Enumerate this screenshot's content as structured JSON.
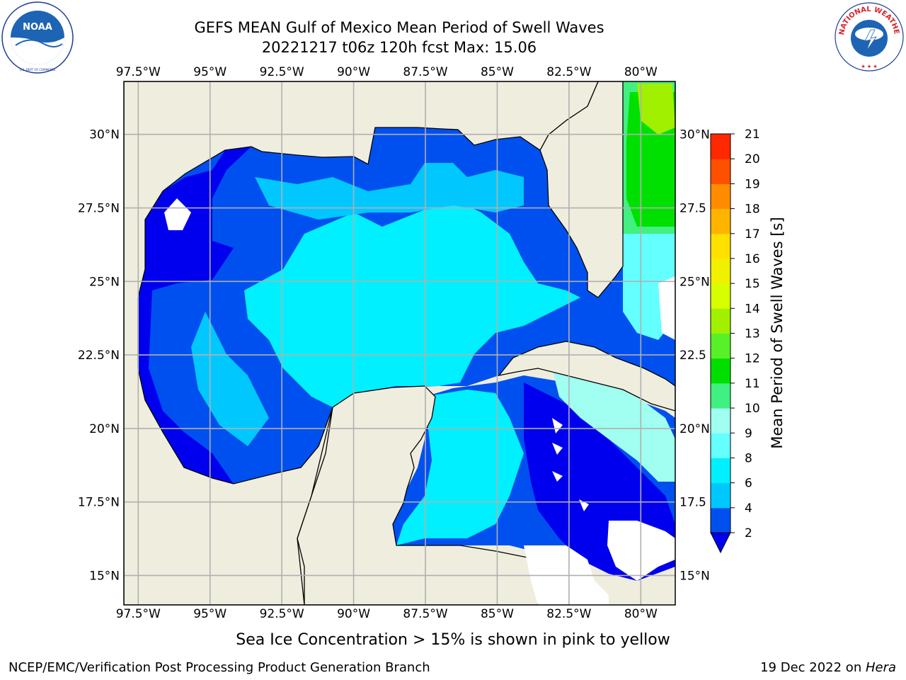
{
  "header": {
    "title_line1": "GEFS MEAN Gulf of Mexico Mean Period of Swell Waves",
    "title_line2": "20221217 t06z 120h fcst   Max: 15.06"
  },
  "logos": {
    "left": "noaa-logo",
    "right": "national-weather-service-logo",
    "left_ring_text": "NATIONAL OCEANIC AND ATMOSPHERIC ADMINISTRATION · U.S. DEPARTMENT OF COMMERCE",
    "right_ring_text": "NATIONAL WEATHER SERVICE"
  },
  "map": {
    "lon_labels": [
      "97.5°W",
      "95°W",
      "92.5°W",
      "90°W",
      "87.5°W",
      "85°W",
      "82.5°W",
      "80°W"
    ],
    "lat_labels": [
      "30°N",
      "27.5°N",
      "25°N",
      "22.5°N",
      "20°N",
      "17.5°N",
      "15°N"
    ],
    "lat_labels_right": [
      "30°N",
      "27.5",
      "25°N",
      "22.5",
      "20°N",
      "17.5",
      "15°N"
    ],
    "lon_range": [
      -98.0,
      -78.8
    ],
    "lat_range": [
      14.0,
      31.8
    ],
    "grid": true,
    "land_color": "#efedde",
    "coast_color": "#000000"
  },
  "colorbar": {
    "label": "Mean Period of Swell Waves [s]",
    "ticks": [
      "2",
      "4",
      "6",
      "8",
      "9",
      "10",
      "11",
      "12",
      "13",
      "14",
      "15",
      "16",
      "17",
      "18",
      "19",
      "20",
      "21"
    ],
    "colors": [
      "#0050f0",
      "#00c8ff",
      "#00f0ff",
      "#64ffff",
      "#a0fff0",
      "#40f080",
      "#00e000",
      "#58f028",
      "#a0f000",
      "#d8ff00",
      "#f0f000",
      "#ffe000",
      "#ffb400",
      "#ff8c00",
      "#ff5000",
      "#ff2800"
    ],
    "under_color": "#0000ee"
  },
  "footer": {
    "ice_note": "Sea Ice Concentration > 15% is shown in pink to yellow",
    "left": "NCEP/EMC/Verification Post Processing Product Generation Branch",
    "right_prefix": "19 Dec 2022 on ",
    "right_host": "Hera"
  }
}
